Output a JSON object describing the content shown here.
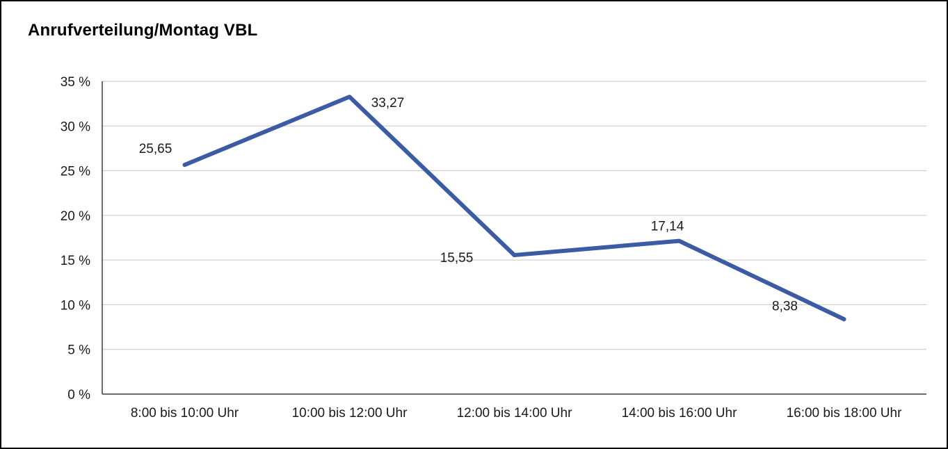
{
  "title": "Anrufverteilung/Montag VBL",
  "chart_data": {
    "type": "line",
    "title": "Anrufverteilung/Montag VBL",
    "categories": [
      "8:00 bis 10:00 Uhr",
      "10:00 bis 12:00 Uhr",
      "12:00 bis 14:00 Uhr",
      "14:00 bis 16:00 Uhr",
      "16:00 bis 18:00 Uhr"
    ],
    "series": [
      {
        "name": "Anrufverteilung Montag VBL",
        "values": [
          25.65,
          33.27,
          15.55,
          17.14,
          8.38
        ],
        "value_labels": [
          "25,65",
          "33,27",
          "15,55",
          "17,14",
          "8,38"
        ]
      }
    ],
    "xlabel": "",
    "ylabel": "",
    "ylim": [
      0,
      35
    ],
    "ytick_step": 5,
    "ytick_labels": [
      "0 %",
      "5 %",
      "10 %",
      "15 %",
      "20 %",
      "25 %",
      "30 %",
      "35 %"
    ],
    "grid": true,
    "legend_position": "none",
    "colors": {
      "line": "#3B5BA5",
      "grid": "#c6c6c6",
      "axis": "#3a3a3a",
      "border": "#000000",
      "background": "#ffffff"
    }
  }
}
